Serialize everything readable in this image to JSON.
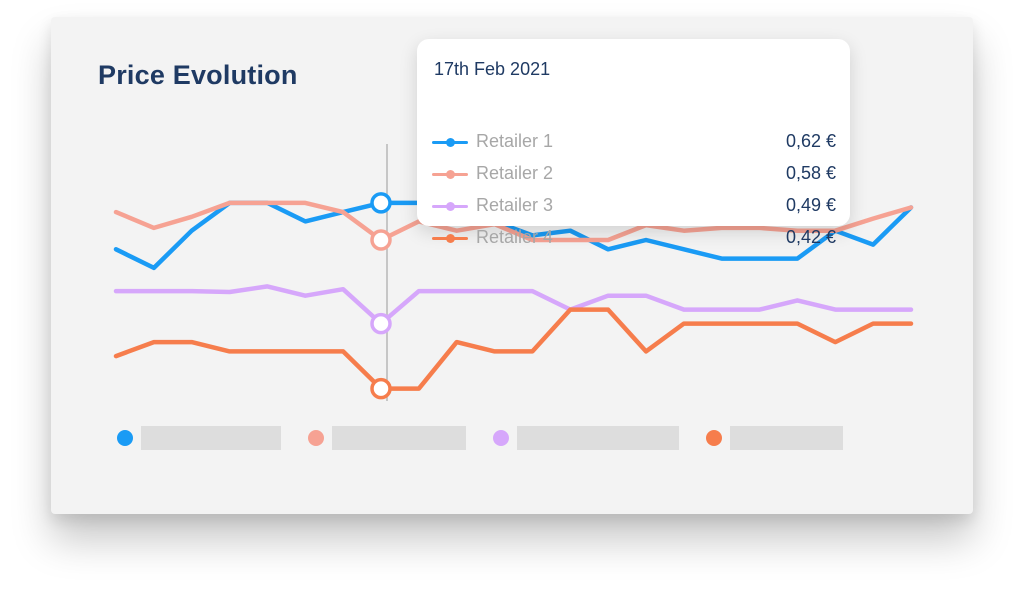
{
  "chart_data": {
    "type": "line",
    "title": "Price Evolution",
    "x": [
      0,
      1,
      2,
      3,
      4,
      5,
      6,
      7,
      8,
      9,
      10,
      11,
      12,
      13,
      14,
      15,
      16,
      17,
      18,
      19,
      20,
      21
    ],
    "y_scale": "price (€)",
    "ylim": [
      0.3,
      0.72
    ],
    "hover_index": 7,
    "series": [
      {
        "name": "Retailer 1",
        "color": "#1a9bf5",
        "values": [
          0.57,
          0.55,
          0.59,
          0.62,
          0.62,
          0.6,
          0.61,
          0.62,
          0.62,
          0.62,
          0.6,
          0.585,
          0.59,
          0.57,
          0.58,
          0.57,
          0.56,
          0.56,
          0.56,
          0.59,
          0.575,
          0.615
        ]
      },
      {
        "name": "Retailer 2",
        "color": "#f6a293",
        "values": [
          0.61,
          0.593,
          0.605,
          0.62,
          0.62,
          0.62,
          0.61,
          0.58,
          0.6,
          0.59,
          0.597,
          0.58,
          0.58,
          0.58,
          0.596,
          0.59,
          0.593,
          0.593,
          0.59,
          0.59,
          0.603,
          0.615
        ]
      },
      {
        "name": "Retailer 3",
        "color": "#d6a7fb",
        "values": [
          0.525,
          0.525,
          0.525,
          0.524,
          0.53,
          0.52,
          0.527,
          0.49,
          0.525,
          0.525,
          0.525,
          0.525,
          0.505,
          0.52,
          0.52,
          0.505,
          0.505,
          0.505,
          0.515,
          0.505,
          0.505,
          0.505
        ]
      },
      {
        "name": "Retailer 4",
        "color": "#f67d4c",
        "values": [
          0.455,
          0.47,
          0.47,
          0.46,
          0.46,
          0.46,
          0.46,
          0.42,
          0.42,
          0.47,
          0.46,
          0.46,
          0.505,
          0.505,
          0.46,
          0.49,
          0.49,
          0.49,
          0.49,
          0.47,
          0.49,
          0.49
        ]
      }
    ]
  },
  "tooltip": {
    "date": "17th Feb 2021",
    "rows": [
      {
        "name": "Retailer 1",
        "value": "0,62 €",
        "color": "#1a9bf5"
      },
      {
        "name": "Retailer 2",
        "value": "0,58 €",
        "color": "#f6a293"
      },
      {
        "name": "Retailer 3",
        "value": "0,49 €",
        "color": "#d6a7fb"
      },
      {
        "name": "Retailer 4",
        "value": "0,42 €",
        "color": "#f67d4c"
      }
    ]
  },
  "legend": {
    "colors": [
      "#1a9bf5",
      "#f6a293",
      "#d6a7fb",
      "#f67d4c"
    ]
  }
}
